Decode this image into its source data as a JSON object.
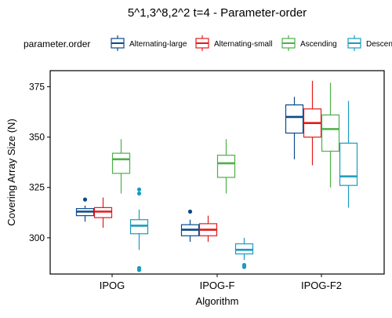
{
  "chart_data": {
    "type": "box",
    "title": "5^1,3^8,2^2 t=4 - Parameter-order",
    "xlabel": "Algorithm",
    "ylabel": "Covering Array Size (N)",
    "ylim": [
      282,
      383
    ],
    "yticks": [
      300,
      325,
      350,
      375
    ],
    "categories": [
      "IPOG",
      "IPOG-F",
      "IPOG-F2"
    ],
    "legend": {
      "title": "parameter.order",
      "position": "top"
    },
    "grid": false,
    "series": [
      {
        "name": "Alternating-large",
        "color": "#0a4a8c",
        "boxes": [
          {
            "category": "IPOG",
            "whisker_low": 308,
            "q1": 311,
            "median": 313,
            "q3": 314.5,
            "whisker_high": 316,
            "outliers": [
              319
            ]
          },
          {
            "category": "IPOG-F",
            "whisker_low": 298,
            "q1": 301,
            "median": 304,
            "q3": 306.5,
            "whisker_high": 309,
            "outliers": [
              313
            ]
          },
          {
            "category": "IPOG-F2",
            "whisker_low": 339,
            "q1": 352,
            "median": 360,
            "q3": 366,
            "whisker_high": 370,
            "outliers": []
          }
        ]
      },
      {
        "name": "Alternating-small",
        "color": "#e31a1c",
        "boxes": [
          {
            "category": "IPOG",
            "whisker_low": 305,
            "q1": 310,
            "median": 313,
            "q3": 315,
            "whisker_high": 320,
            "outliers": []
          },
          {
            "category": "IPOG-F",
            "whisker_low": 298,
            "q1": 301,
            "median": 304,
            "q3": 307,
            "whisker_high": 311,
            "outliers": []
          },
          {
            "category": "IPOG-F2",
            "whisker_low": 336,
            "q1": 350,
            "median": 357,
            "q3": 364,
            "whisker_high": 378,
            "outliers": []
          }
        ]
      },
      {
        "name": "Ascending",
        "color": "#4daf4a",
        "boxes": [
          {
            "category": "IPOG",
            "whisker_low": 322,
            "q1": 332,
            "median": 339,
            "q3": 342,
            "whisker_high": 349,
            "outliers": []
          },
          {
            "category": "IPOG-F",
            "whisker_low": 322,
            "q1": 330,
            "median": 337,
            "q3": 341,
            "whisker_high": 349,
            "outliers": []
          },
          {
            "category": "IPOG-F2",
            "whisker_low": 325,
            "q1": 343,
            "median": 354,
            "q3": 361,
            "whisker_high": 377,
            "outliers": []
          }
        ]
      },
      {
        "name": "Descending",
        "color": "#1a9bbf",
        "boxes": [
          {
            "category": "IPOG",
            "whisker_low": 294,
            "q1": 302,
            "median": 306,
            "q3": 309,
            "whisker_high": 314,
            "outliers": [
              322,
              324,
              284,
              285
            ]
          },
          {
            "category": "IPOG-F",
            "whisker_low": 289,
            "q1": 292,
            "median": 294,
            "q3": 297,
            "whisker_high": 300,
            "outliers": [
              285.5,
              286.5
            ]
          },
          {
            "category": "IPOG-F2",
            "whisker_low": 315,
            "q1": 326,
            "median": 330.5,
            "q3": 347,
            "whisker_high": 368,
            "outliers": []
          }
        ]
      }
    ]
  }
}
